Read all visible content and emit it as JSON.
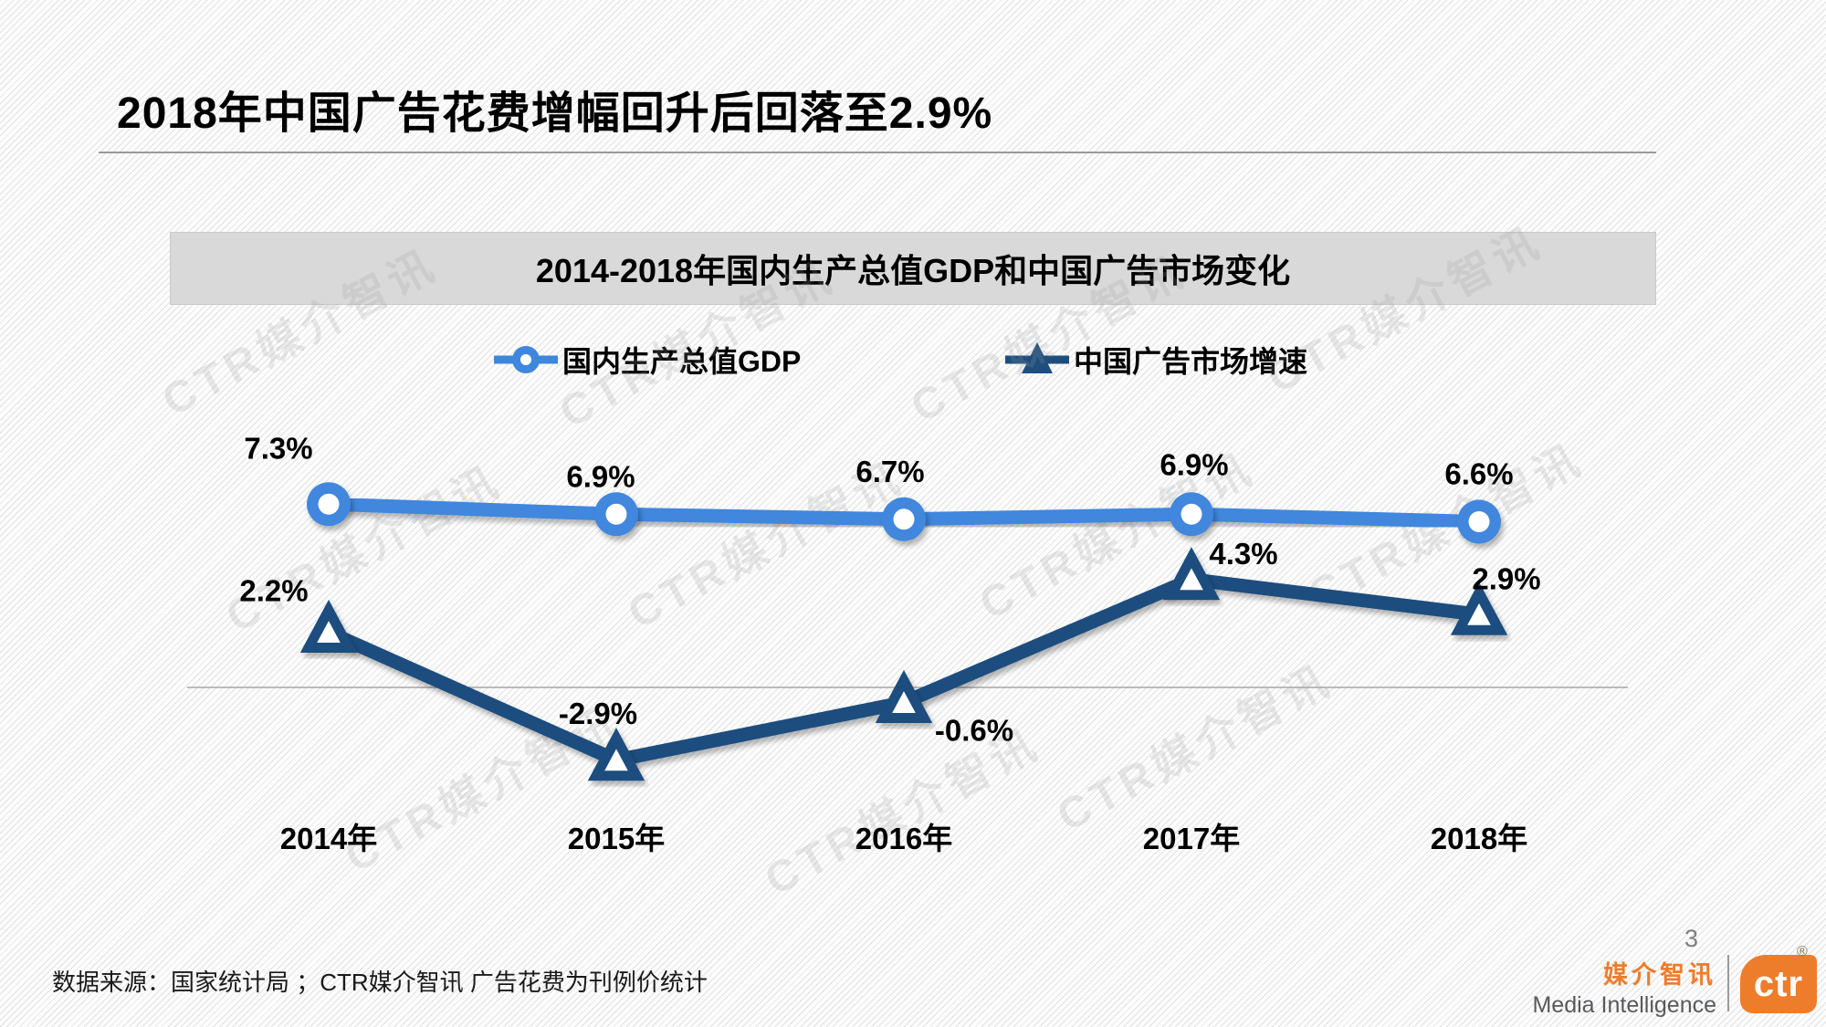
{
  "header": {
    "title": "2018年中国广告花费增幅回升后回落至2.9%"
  },
  "chart": {
    "banner_title": "2014-2018年国内生产总值GDP和中国广告市场变化",
    "watermark_text": "CTR媒介智讯"
  },
  "chart_data": {
    "type": "line",
    "title": "2014-2018年国内生产总值GDP和中国广告市场变化",
    "categories": [
      "2014年",
      "2015年",
      "2016年",
      "2017年",
      "2018年"
    ],
    "series": [
      {
        "name": "国内生产总值GDP",
        "values": [
          7.3,
          6.9,
          6.7,
          6.9,
          6.6
        ],
        "labels": [
          "7.3%",
          "6.9%",
          "6.7%",
          "6.9%",
          "6.6%"
        ],
        "color": "#3f87dd",
        "marker": "circle"
      },
      {
        "name": "中国广告市场增速",
        "values": [
          2.2,
          -2.9,
          -0.6,
          4.3,
          2.9
        ],
        "labels": [
          "2.2%",
          "-2.9%",
          "-0.6%",
          "4.3%",
          "2.9%"
        ],
        "color": "#1e4e7e",
        "marker": "triangle"
      }
    ],
    "ylim": [
      -4.5,
      8.5
    ],
    "grid": "zero-baseline-only",
    "legend_position": "top"
  },
  "colors": {
    "banner_bg": "#d9d9d9",
    "watermark": "#9a9a9a",
    "page_number_gray": "#7f7f7f",
    "brand_orange": "#ed7d2b",
    "brand_gray": "#58595b"
  },
  "footer": {
    "source": "数据来源：国家统计局 ；CTR媒介智讯 广告花费为刊例价统计",
    "page_number": "3",
    "brand": {
      "cn": "媒介智讯",
      "en": "Media Intelligence",
      "logo_text": "ctr",
      "registered_mark": "®"
    }
  }
}
